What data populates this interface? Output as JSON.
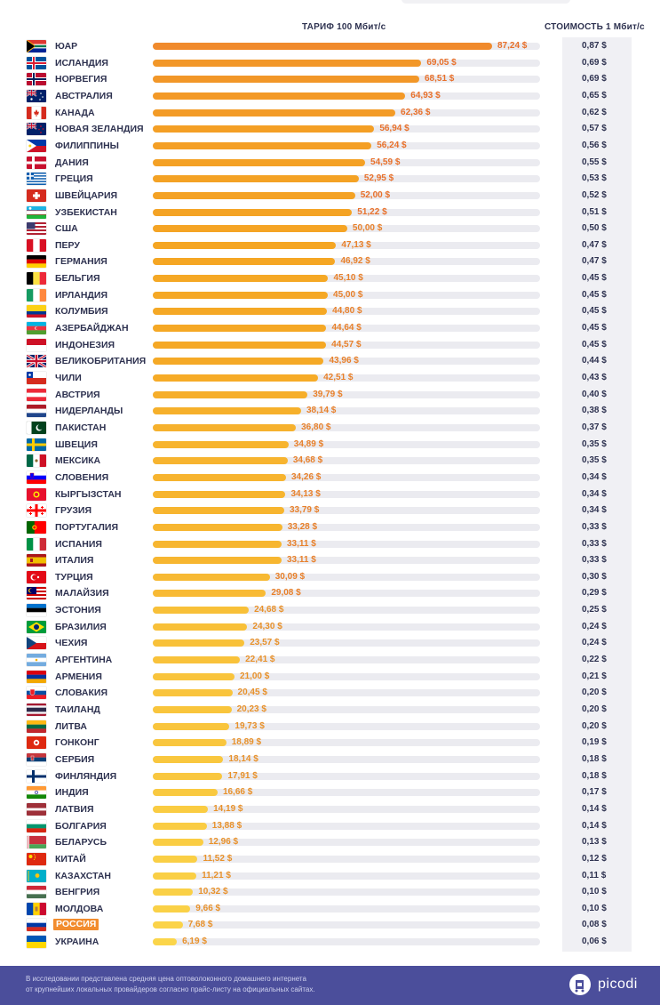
{
  "header": {
    "tariff_label": "ТАРИФ 100 Мбит/с",
    "cost_label": "СТОИМОСТЬ 1 Мбит/с"
  },
  "chart_data": {
    "type": "bar",
    "orientation": "horizontal",
    "title": "",
    "xlim": [
      0,
      87.24
    ],
    "highlight": "РОССИЯ",
    "color_scale": [
      "#f08a2c",
      "#f5a623",
      "#fbd54a"
    ],
    "rows": [
      {
        "country": "ЮАР",
        "flag": "za",
        "tariff": 87.24,
        "tariff_label": "87,24 $",
        "cost_label": "0,87 $"
      },
      {
        "country": "ИСЛАНДИЯ",
        "flag": "is",
        "tariff": 69.05,
        "tariff_label": "69,05 $",
        "cost_label": "0,69 $"
      },
      {
        "country": "НОРВЕГИЯ",
        "flag": "no",
        "tariff": 68.51,
        "tariff_label": "68,51 $",
        "cost_label": "0,69 $"
      },
      {
        "country": "АВСТРАЛИЯ",
        "flag": "au",
        "tariff": 64.93,
        "tariff_label": "64,93 $",
        "cost_label": "0,65 $"
      },
      {
        "country": "КАНАДА",
        "flag": "ca",
        "tariff": 62.36,
        "tariff_label": "62,36 $",
        "cost_label": "0,62 $"
      },
      {
        "country": "НОВАЯ ЗЕЛАНДИЯ",
        "flag": "nz",
        "tariff": 56.94,
        "tariff_label": "56,94 $",
        "cost_label": "0,57 $"
      },
      {
        "country": "ФИЛИППИНЫ",
        "flag": "ph",
        "tariff": 56.24,
        "tariff_label": "56,24 $",
        "cost_label": "0,56 $"
      },
      {
        "country": "ДАНИЯ",
        "flag": "dk",
        "tariff": 54.59,
        "tariff_label": "54,59 $",
        "cost_label": "0,55 $"
      },
      {
        "country": "ГРЕЦИЯ",
        "flag": "gr",
        "tariff": 52.95,
        "tariff_label": "52,95 $",
        "cost_label": "0,53 $"
      },
      {
        "country": "ШВЕЙЦАРИЯ",
        "flag": "ch",
        "tariff": 52.0,
        "tariff_label": "52,00 $",
        "cost_label": "0,52 $"
      },
      {
        "country": "УЗБЕКИСТАН",
        "flag": "uz",
        "tariff": 51.22,
        "tariff_label": "51,22 $",
        "cost_label": "0,51 $"
      },
      {
        "country": "США",
        "flag": "us",
        "tariff": 50.0,
        "tariff_label": "50,00 $",
        "cost_label": "0,50 $"
      },
      {
        "country": "ПЕРУ",
        "flag": "pe",
        "tariff": 47.13,
        "tariff_label": "47,13 $",
        "cost_label": "0,47 $"
      },
      {
        "country": "ГЕРМАНИЯ",
        "flag": "de",
        "tariff": 46.92,
        "tariff_label": "46,92 $",
        "cost_label": "0,47 $"
      },
      {
        "country": "БЕЛЬГИЯ",
        "flag": "be",
        "tariff": 45.1,
        "tariff_label": "45,10 $",
        "cost_label": "0,45 $"
      },
      {
        "country": "ИРЛАНДИЯ",
        "flag": "ie",
        "tariff": 45.0,
        "tariff_label": "45,00 $",
        "cost_label": "0,45 $"
      },
      {
        "country": "КОЛУМБИЯ",
        "flag": "co",
        "tariff": 44.8,
        "tariff_label": "44,80 $",
        "cost_label": "0,45 $"
      },
      {
        "country": "АЗЕРБАЙДЖАН",
        "flag": "az",
        "tariff": 44.64,
        "tariff_label": "44,64 $",
        "cost_label": "0,45 $"
      },
      {
        "country": "ИНДОНЕЗИЯ",
        "flag": "id",
        "tariff": 44.57,
        "tariff_label": "44,57 $",
        "cost_label": "0,45 $"
      },
      {
        "country": "ВЕЛИКОБРИТАНИЯ",
        "flag": "gb",
        "tariff": 43.96,
        "tariff_label": "43,96 $",
        "cost_label": "0,44 $"
      },
      {
        "country": "ЧИЛИ",
        "flag": "cl",
        "tariff": 42.51,
        "tariff_label": "42,51 $",
        "cost_label": "0,43 $"
      },
      {
        "country": "АВСТРИЯ",
        "flag": "at",
        "tariff": 39.79,
        "tariff_label": "39,79 $",
        "cost_label": "0,40 $"
      },
      {
        "country": "НИДЕРЛАНДЫ",
        "flag": "nl",
        "tariff": 38.14,
        "tariff_label": "38,14 $",
        "cost_label": "0,38 $"
      },
      {
        "country": "ПАКИСТАН",
        "flag": "pk",
        "tariff": 36.8,
        "tariff_label": "36,80 $",
        "cost_label": "0,37 $"
      },
      {
        "country": "ШВЕЦИЯ",
        "flag": "se",
        "tariff": 34.89,
        "tariff_label": "34,89 $",
        "cost_label": "0,35 $"
      },
      {
        "country": "МЕКСИКА",
        "flag": "mx",
        "tariff": 34.68,
        "tariff_label": "34,68 $",
        "cost_label": "0,35 $"
      },
      {
        "country": "СЛОВЕНИЯ",
        "flag": "si",
        "tariff": 34.26,
        "tariff_label": "34,26 $",
        "cost_label": "0,34 $"
      },
      {
        "country": "КЫРГЫЗСТАН",
        "flag": "kg",
        "tariff": 34.13,
        "tariff_label": "34,13 $",
        "cost_label": "0,34 $"
      },
      {
        "country": "ГРУЗИЯ",
        "flag": "ge",
        "tariff": 33.79,
        "tariff_label": "33,79 $",
        "cost_label": "0,34 $"
      },
      {
        "country": "ПОРТУГАЛИЯ",
        "flag": "pt",
        "tariff": 33.28,
        "tariff_label": "33,28 $",
        "cost_label": "0,33 $"
      },
      {
        "country": "ИСПАНИЯ",
        "flag": "it",
        "tariff": 33.11,
        "tariff_label": "33,11 $",
        "cost_label": "0,33 $"
      },
      {
        "country": "ИТАЛИЯ",
        "flag": "es",
        "tariff": 33.11,
        "tariff_label": "33,11 $",
        "cost_label": "0,33 $"
      },
      {
        "country": "ТУРЦИЯ",
        "flag": "tr",
        "tariff": 30.09,
        "tariff_label": "30,09 $",
        "cost_label": "0,30 $"
      },
      {
        "country": "МАЛАЙЗИЯ",
        "flag": "my",
        "tariff": 29.08,
        "tariff_label": "29,08 $",
        "cost_label": "0,29 $"
      },
      {
        "country": "ЭСТОНИЯ",
        "flag": "ee",
        "tariff": 24.68,
        "tariff_label": "24,68 $",
        "cost_label": "0,25 $"
      },
      {
        "country": "БРАЗИЛИЯ",
        "flag": "br",
        "tariff": 24.3,
        "tariff_label": "24,30 $",
        "cost_label": "0,24 $"
      },
      {
        "country": "ЧЕХИЯ",
        "flag": "cz",
        "tariff": 23.57,
        "tariff_label": "23,57 $",
        "cost_label": "0,24 $"
      },
      {
        "country": "АРГЕНТИНА",
        "flag": "ar",
        "tariff": 22.41,
        "tariff_label": "22,41 $",
        "cost_label": "0,22 $"
      },
      {
        "country": "АРМЕНИЯ",
        "flag": "am",
        "tariff": 21.0,
        "tariff_label": "21,00 $",
        "cost_label": "0,21 $"
      },
      {
        "country": "СЛОВАКИЯ",
        "flag": "sk",
        "tariff": 20.45,
        "tariff_label": "20,45 $",
        "cost_label": "0,20 $"
      },
      {
        "country": "ТАИЛАНД",
        "flag": "th",
        "tariff": 20.23,
        "tariff_label": "20,23 $",
        "cost_label": "0,20 $"
      },
      {
        "country": "ЛИТВА",
        "flag": "lt",
        "tariff": 19.73,
        "tariff_label": "19,73 $",
        "cost_label": "0,20 $"
      },
      {
        "country": "ГОНКОНГ",
        "flag": "hk",
        "tariff": 18.89,
        "tariff_label": "18,89 $",
        "cost_label": "0,19 $"
      },
      {
        "country": "СЕРБИЯ",
        "flag": "rs",
        "tariff": 18.14,
        "tariff_label": "18,14 $",
        "cost_label": "0,18 $"
      },
      {
        "country": "ФИНЛЯНДИЯ",
        "flag": "fi",
        "tariff": 17.91,
        "tariff_label": "17,91 $",
        "cost_label": "0,18 $"
      },
      {
        "country": "ИНДИЯ",
        "flag": "in",
        "tariff": 16.66,
        "tariff_label": "16,66 $",
        "cost_label": "0,17 $"
      },
      {
        "country": "ЛАТВИЯ",
        "flag": "lv",
        "tariff": 14.19,
        "tariff_label": "14,19 $",
        "cost_label": "0,14 $"
      },
      {
        "country": "БОЛГАРИЯ",
        "flag": "bg",
        "tariff": 13.88,
        "tariff_label": "13,88 $",
        "cost_label": "0,14 $"
      },
      {
        "country": "БЕЛАРУСЬ",
        "flag": "by",
        "tariff": 12.96,
        "tariff_label": "12,96 $",
        "cost_label": "0,13 $"
      },
      {
        "country": "КИТАЙ",
        "flag": "cn",
        "tariff": 11.52,
        "tariff_label": "11,52 $",
        "cost_label": "0,12 $"
      },
      {
        "country": "КАЗАХСТАН",
        "flag": "kz",
        "tariff": 11.21,
        "tariff_label": "11,21 $",
        "cost_label": "0,11 $"
      },
      {
        "country": "ВЕНГРИЯ",
        "flag": "hu",
        "tariff": 10.32,
        "tariff_label": "10,32 $",
        "cost_label": "0,10 $"
      },
      {
        "country": "МОЛДОВА",
        "flag": "md",
        "tariff": 9.66,
        "tariff_label": "9,66 $",
        "cost_label": "0,10 $"
      },
      {
        "country": "РОССИЯ",
        "flag": "ru",
        "tariff": 7.68,
        "tariff_label": "7,68 $",
        "cost_label": "0,08 $"
      },
      {
        "country": "УКРАИНА",
        "flag": "ua",
        "tariff": 6.19,
        "tariff_label": "6,19 $",
        "cost_label": "0,06 $"
      }
    ]
  },
  "footer": {
    "note_line1": "В исследовании представлена средняя цена оптоволоконного домашнего интернета",
    "note_line2": "от крупнейших локальных провайдеров согласно прайс-листу на официальных сайтах.",
    "brand": "picodi",
    "background": "#4b4e9b"
  }
}
